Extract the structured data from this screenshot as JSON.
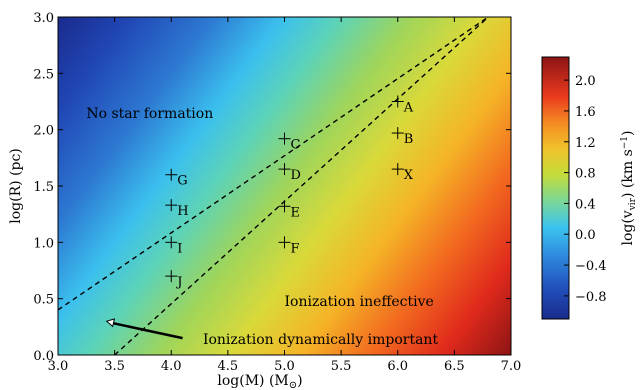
{
  "chart_data": {
    "type": "heatmap",
    "xlabel": "log(M) (M",
    "xlabel_sub": "⊙",
    "xlabel_close": ")",
    "ylabel": "log(R) (pc)",
    "xlim": [
      3.0,
      7.0
    ],
    "ylim": [
      0.0,
      3.0
    ],
    "xticks": [
      "3.0",
      "3.5",
      "4.0",
      "4.5",
      "5.0",
      "5.5",
      "6.0",
      "6.5",
      "7.0"
    ],
    "xtick_values": [
      3.0,
      3.5,
      4.0,
      4.5,
      5.0,
      5.5,
      6.0,
      6.5,
      7.0
    ],
    "yticks": [
      "0.0",
      "0.5",
      "1.0",
      "1.5",
      "2.0",
      "2.5",
      "3.0"
    ],
    "ytick_values": [
      0.0,
      0.5,
      1.0,
      1.5,
      2.0,
      2.5,
      3.0
    ],
    "field": {
      "quantity": "log(v_vir)",
      "formula": "0.5*(log(M) - log(R)) - 1.37",
      "clim": [
        -1.1,
        2.3
      ]
    },
    "colorbar": {
      "label_main": "log(v",
      "label_sub": "vir",
      "label_rest": ") (km s",
      "label_sup": "−1",
      "label_end": ")",
      "range": [
        -1.1,
        2.3
      ],
      "ticks": [
        "2.0",
        "1.6",
        "1.2",
        "0.8",
        "0.4",
        "0.0",
        "−0.4",
        "−0.8"
      ],
      "tick_values": [
        2.0,
        1.6,
        1.2,
        0.8,
        0.4,
        0.0,
        -0.4,
        -0.8
      ]
    },
    "lines": [
      {
        "style": "dashed",
        "x": [
          3.0,
          6.8
        ],
        "y": [
          0.4,
          3.0
        ]
      },
      {
        "style": "dashed",
        "x": [
          3.5,
          6.8
        ],
        "y": [
          0.0,
          3.0
        ]
      }
    ],
    "points": [
      {
        "label": "A",
        "x": 6.0,
        "y": 2.25
      },
      {
        "label": "B",
        "x": 6.0,
        "y": 1.97
      },
      {
        "label": "X",
        "x": 6.0,
        "y": 1.65
      },
      {
        "label": "C",
        "x": 5.0,
        "y": 1.92
      },
      {
        "label": "D",
        "x": 5.0,
        "y": 1.65
      },
      {
        "label": "E",
        "x": 5.0,
        "y": 1.32
      },
      {
        "label": "F",
        "x": 5.0,
        "y": 1.0
      },
      {
        "label": "G",
        "x": 4.0,
        "y": 1.6
      },
      {
        "label": "H",
        "x": 4.0,
        "y": 1.33
      },
      {
        "label": "I",
        "x": 4.0,
        "y": 1.0
      },
      {
        "label": "J",
        "x": 4.0,
        "y": 0.7
      }
    ],
    "annotations": [
      {
        "text": "No star formation",
        "x": 3.25,
        "y": 2.15
      },
      {
        "text": "Ionization ineffective",
        "x": 5.0,
        "y": 0.48
      },
      {
        "text": "Ionization dynamically important",
        "x": 4.28,
        "y": 0.14
      }
    ],
    "arrow": {
      "from": [
        4.1,
        0.15
      ],
      "to": [
        3.43,
        0.3
      ]
    }
  }
}
